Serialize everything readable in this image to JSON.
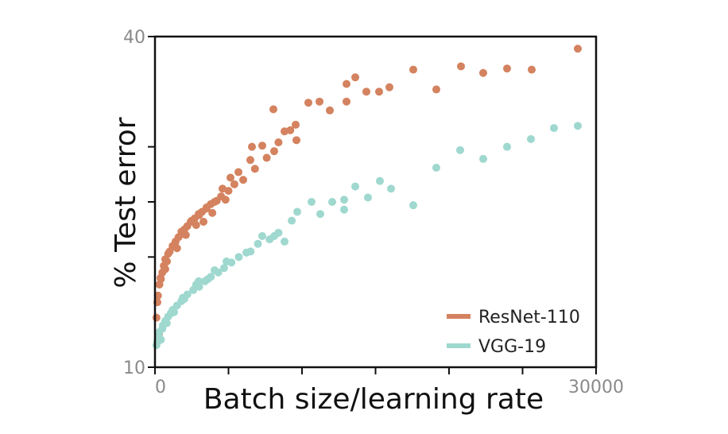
{
  "chart_data": {
    "type": "scatter",
    "x_label": "Batch size/learning rate",
    "y_label": "% Test error",
    "xlim": [
      0,
      30000
    ],
    "xticks": [
      0,
      30000
    ],
    "xminor_ticks": [
      5000,
      10000,
      15000,
      20000,
      25000
    ],
    "ylim": [
      10,
      40
    ],
    "yticks": [
      10,
      40
    ],
    "yminor_ticks": [
      20,
      25,
      30
    ],
    "legend": "lower right",
    "series": [
      {
        "name": "ResNet-110",
        "color": "#d4825f",
        "x": [
          28757,
          25622,
          23946,
          22324,
          20811,
          19135,
          17568,
          15946,
          15243,
          14378,
          13622,
          13027,
          13027,
          11892,
          11189,
          10432,
          9568,
          9622,
          8811,
          8054,
          8108,
          7297,
          6595,
          6486,
          5676,
          5135,
          4595,
          4054,
          3514,
          2973,
          2432,
          1892,
          1351,
          811,
          378,
          162,
          270,
          100,
          200,
          300,
          400,
          500,
          600,
          700,
          900,
          1000,
          1200,
          1400,
          1600,
          1800,
          2000,
          2200,
          2500,
          2700,
          3000,
          3200,
          3500,
          3800,
          4200,
          4500,
          5000,
          5400,
          6000,
          6800,
          7600,
          8400,
          9200,
          700,
          1500,
          2100,
          2800,
          3300,
          3900,
          4800
        ],
        "values": [
          38.9,
          37.0,
          37.1,
          36.7,
          37.3,
          35.2,
          37.0,
          35.4,
          35.0,
          35.0,
          36.3,
          35.7,
          34.1,
          33.3,
          34.1,
          34.0,
          32.0,
          30.6,
          31.4,
          33.4,
          29.6,
          30.1,
          30.0,
          28.8,
          27.7,
          27.2,
          26.2,
          25.0,
          24.5,
          23.9,
          23.2,
          22.1,
          21.0,
          19.6,
          18.1,
          15.9,
          13.0,
          14.5,
          16.5,
          17.5,
          18.0,
          18.6,
          19.2,
          19.8,
          20.3,
          20.5,
          21.0,
          21.4,
          21.8,
          22.3,
          22.5,
          22.8,
          23.3,
          23.5,
          23.8,
          24.1,
          24.4,
          24.8,
          25.1,
          25.5,
          26.0,
          26.6,
          27.0,
          28.0,
          29.0,
          30.4,
          31.5,
          18.9,
          20.8,
          22.0,
          22.9,
          23.2,
          24.0,
          25.2
        ]
      },
      {
        "name": "VGG-19",
        "color": "#9fd8cf",
        "x": [
          28757,
          27135,
          25568,
          23946,
          22324,
          20757,
          19135,
          17568,
          16054,
          15297,
          14486,
          13622,
          12865,
          12865,
          12054,
          11243,
          10649,
          9676,
          8811,
          8108,
          7297,
          6216,
          4865,
          4054,
          2973,
          1892,
          1081,
          541,
          162,
          270,
          100,
          300,
          500,
          700,
          900,
          1200,
          1500,
          1800,
          2200,
          2600,
          3000,
          3400,
          3800,
          4300,
          4700,
          5200,
          5700,
          6500,
          7000,
          7800,
          8400,
          9300,
          400,
          800,
          1300,
          2000,
          2800,
          3600
        ],
        "values": [
          31.9,
          31.7,
          30.7,
          30.0,
          28.9,
          29.7,
          28.1,
          24.7,
          26.2,
          26.9,
          25.4,
          26.4,
          25.2,
          24.3,
          25.0,
          23.9,
          25.0,
          24.1,
          21.4,
          21.9,
          21.9,
          20.4,
          19.6,
          18.8,
          17.8,
          16.3,
          14.9,
          13.8,
          12.3,
          12.7,
          12.0,
          13.2,
          13.5,
          14.2,
          14.6,
          15.2,
          15.6,
          16.0,
          16.6,
          17.0,
          17.3,
          17.8,
          18.2,
          18.6,
          19.0,
          19.5,
          20.0,
          20.5,
          21.2,
          21.6,
          22.2,
          23.3,
          12.5,
          14.0,
          15.0,
          16.2,
          17.5,
          18.0
        ]
      }
    ]
  }
}
